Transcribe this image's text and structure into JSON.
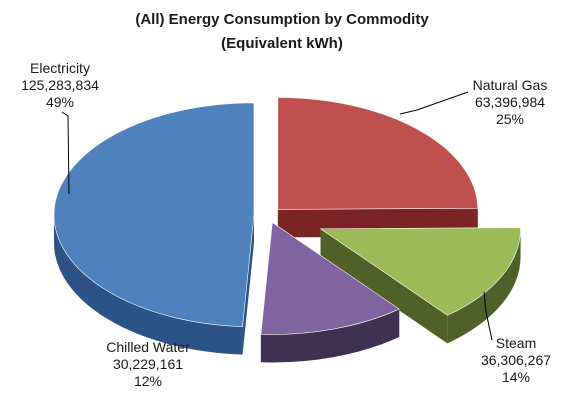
{
  "chart_data": {
    "type": "pie",
    "style": "3d-exploded",
    "title": "(All)  Energy Consumption by Commodity",
    "subtitle": "(Equivalent kWh)",
    "legend": "none",
    "slices": [
      {
        "name": "Natural Gas",
        "value": 63396984,
        "value_label": "63,396,984",
        "percent_label": "25%",
        "color": "#c0504d",
        "side_color": "#7a2423"
      },
      {
        "name": "Steam",
        "value": 36306267,
        "value_label": "36,306,267",
        "percent_label": "14%",
        "color": "#9bbb59",
        "side_color": "#4f6128"
      },
      {
        "name": "Chilled Water",
        "value": 30229161,
        "value_label": "30,229,161",
        "percent_label": "12%",
        "color": "#8064a2",
        "side_color": "#3f3151"
      },
      {
        "name": "Electricity",
        "value": 125283834,
        "value_label": "125,283,834",
        "percent_label": "49%",
        "color": "#4f81bd",
        "side_color": "#2c5385"
      }
    ]
  }
}
